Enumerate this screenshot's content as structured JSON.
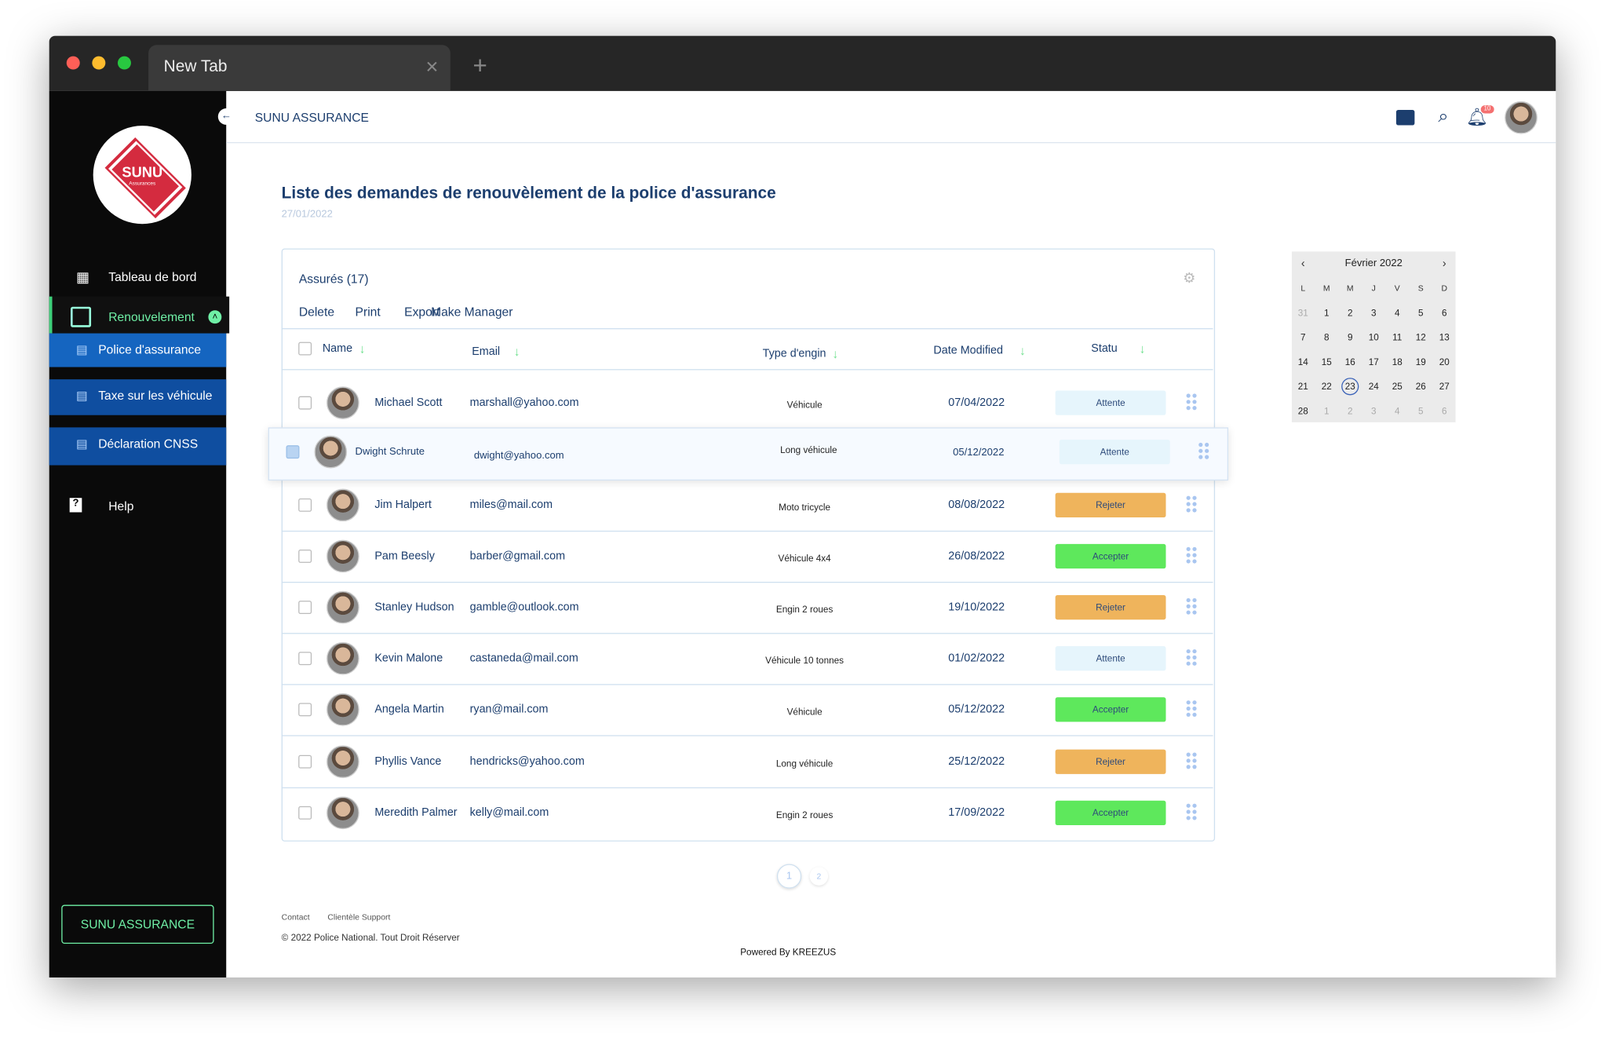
{
  "browser": {
    "tab": "New Tab"
  },
  "sidebar": {
    "logo": "SUNU",
    "logo_sub": "Assurances",
    "menu": [
      "Tableau de bord",
      "Renouvelement"
    ],
    "submenu": [
      "Police d'assurance",
      "Taxe sur les véhicule",
      "Déclaration CNSS"
    ],
    "help": "Help",
    "button": "SUNU ASSURANCE"
  },
  "header": {
    "brand": "SUNU ASSURANCE",
    "notifications": 10
  },
  "page": {
    "title": "Liste des demandes de renouvèlement de la police d'assurance",
    "date": "27/01/2022"
  },
  "table": {
    "title": "Assurés (17)",
    "actions": [
      "Delete",
      "Print",
      "Export",
      "Make Manager"
    ],
    "columns": [
      "Name",
      "Email",
      "Type d'engin",
      "Date Modified",
      "Statu"
    ],
    "rows": [
      [
        "Michael Scott",
        "marshall@yahoo.com",
        "Véhicule",
        "07/04/2022",
        "Attente"
      ],
      [
        "Dwight Schrute",
        "dwight@yahoo.com",
        "Long véhicule",
        "05/12/2022",
        "Attente"
      ],
      [
        "Jim Halpert",
        "miles@mail.com",
        "Moto tricycle",
        "08/08/2022",
        "Rejeter"
      ],
      [
        "Pam Beesly",
        "barber@gmail.com",
        "Véhicule 4x4",
        "26/08/2022",
        "Accepter"
      ],
      [
        "Stanley Hudson",
        "gamble@outlook.com",
        "Engin 2 roues",
        "19/10/2022",
        "Rejeter"
      ],
      [
        "Kevin Malone",
        "castaneda@mail.com",
        "Véhicule 10 tonnes",
        "01/02/2022",
        "Attente"
      ],
      [
        "Angela Martin",
        "ryan@mail.com",
        "Véhicule",
        "05/12/2022",
        "Accepter"
      ],
      [
        "Phyllis Vance",
        "hendricks@yahoo.com",
        "Long véhicule",
        "25/12/2022",
        "Rejeter"
      ],
      [
        "Meredith Palmer",
        "kelly@mail.com",
        "Engin 2 roues",
        "17/09/2022",
        "Accepter"
      ]
    ],
    "selected": 1,
    "status_colors": {
      "Attente": "#e6f5fc",
      "Rejeter": "#efb45c",
      "Accepter": "#5ee85c"
    }
  },
  "pagination": [
    1,
    2
  ],
  "calendar": {
    "month": "Février 2022",
    "weekdays": [
      "L",
      "M",
      "M",
      "J",
      "V",
      "S",
      "D"
    ],
    "days": [
      [
        31,
        1,
        2,
        3,
        4,
        5,
        6
      ],
      [
        7,
        8,
        9,
        10,
        11,
        12,
        13
      ],
      [
        14,
        15,
        16,
        17,
        18,
        19,
        20
      ],
      [
        21,
        22,
        23,
        24,
        25,
        26,
        27
      ],
      [
        28,
        1,
        2,
        3,
        4,
        5,
        6
      ]
    ],
    "today": 23
  },
  "footer": {
    "links": [
      "Contact",
      "Clientèle Support"
    ],
    "copyright": "© 2022 Police National. Tout Droit Réserver",
    "powered": "Powered By KREEZUS"
  }
}
